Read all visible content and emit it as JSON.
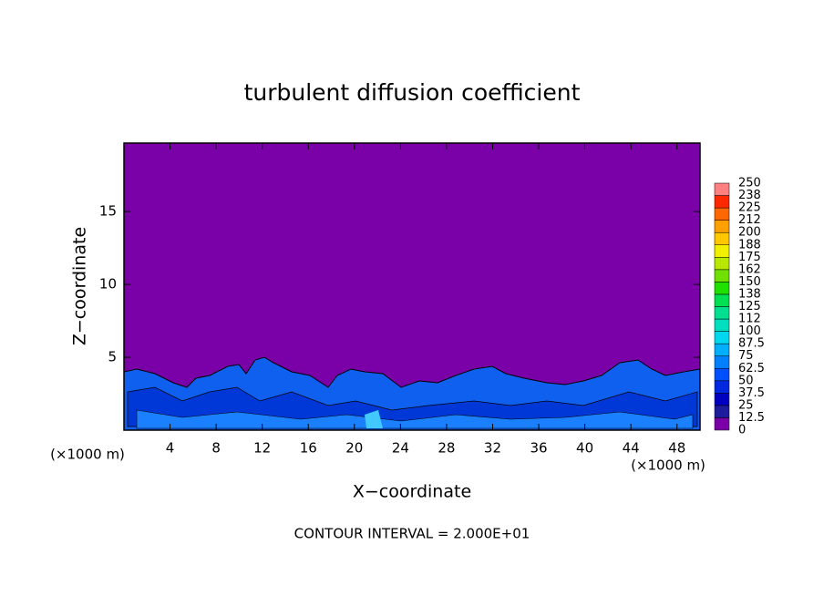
{
  "chart_data": {
    "type": "contour",
    "title": "turbulent diffusion coefficient",
    "xlabel": "X−coordinate",
    "ylabel": "Z−coordinate",
    "x_unit_left": "(×1000 m)",
    "x_unit_right": "(×1000 m)",
    "footnote": "CONTOUR INTERVAL = 2.000E+01",
    "xlim": [
      0,
      50
    ],
    "ylim": [
      0,
      19.7
    ],
    "xticks": [
      4,
      8,
      12,
      16,
      20,
      24,
      28,
      32,
      36,
      40,
      44,
      48
    ],
    "yticks": [
      5,
      10,
      15
    ],
    "colorbar": {
      "levels": [
        0,
        12.5,
        25,
        37.5,
        50,
        62.5,
        75,
        87.5,
        100,
        {
          "value": 112.5,
          "label": "112"
        },
        125,
        {
          "value": 137.5,
          "label": "138"
        },
        150,
        {
          "value": 162.5,
          "label": "162"
        },
        175,
        {
          "value": 187.5,
          "label": "188"
        },
        200,
        {
          "value": 212.5,
          "label": "212"
        },
        225,
        {
          "value": 237.5,
          "label": "238"
        },
        250
      ],
      "colors": [
        "#7a00a8",
        "#1c1c9c",
        "#0000c0",
        "#0028e0",
        "#0050ff",
        "#0080ff",
        "#00b0ff",
        "#00d8f0",
        "#00e0c0",
        "#00e090",
        "#00e050",
        "#20e000",
        "#70e000",
        "#b8e800",
        "#f0f000",
        "#ffc800",
        "#ffa000",
        "#ff6800",
        "#ff2800",
        "#ff8080"
      ]
    }
  }
}
